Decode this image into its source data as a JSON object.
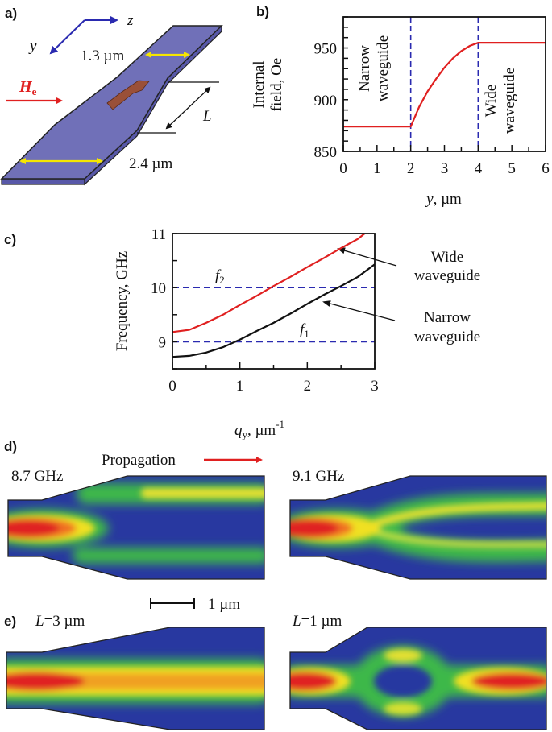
{
  "panel_labels": {
    "a": "a)",
    "b": "b)",
    "c": "c)",
    "d": "d)",
    "e": "e)"
  },
  "panel_a": {
    "axis_z": "z",
    "axis_y": "y",
    "narrow_width": "1.3 µm",
    "wide_width": "2.4 µm",
    "field_symbol": "H",
    "field_subscript": "e",
    "taper_length": "L",
    "colors": {
      "film": "#7070b8",
      "width_arrows": "#f5e600",
      "field_arrow": "#e02020",
      "magnetization_arrow": "#9a5038",
      "axes": "#2a2ab0"
    }
  },
  "chart_data": [
    {
      "type": "line",
      "xlabel_var": "y",
      "xlabel_unit": ", µm",
      "ylabel_line1": "Internal",
      "ylabel_line2": "field, Oe",
      "xlim": [
        0,
        6
      ],
      "ylim": [
        850,
        980
      ],
      "x_ticks": [
        "0",
        "1",
        "2",
        "3",
        "4",
        "5",
        "6"
      ],
      "y_ticks": [
        "850",
        "900",
        "950"
      ],
      "series": [
        {
          "color": "#e02020",
          "x": [
            0,
            2,
            2.25,
            2.5,
            2.75,
            3,
            3.25,
            3.5,
            3.75,
            4,
            6
          ],
          "y": [
            874,
            874,
            893,
            908,
            920,
            931,
            940,
            947,
            952,
            955,
            955
          ]
        }
      ],
      "vlines": [
        2,
        4
      ],
      "vline_color": "#2a2ab0",
      "region_labels": {
        "narrow_1": "Narrow",
        "narrow_2": "waveguide",
        "wide_1": "Wide",
        "wide_2": "waveguide"
      },
      "grid": false
    },
    {
      "type": "line",
      "xlabel_var": "q",
      "xlabel_sub": "y",
      "xlabel_unit": ", µm",
      "xlabel_sup": "-1",
      "ylabel": "Frequency, GHz",
      "xlim": [
        0,
        3
      ],
      "ylim": [
        8.5,
        11
      ],
      "x_ticks": [
        "0",
        "1",
        "2",
        "3"
      ],
      "y_ticks": [
        "9",
        "10",
        "11"
      ],
      "series": [
        {
          "color": "#e02020",
          "x": [
            0,
            0.25,
            0.5,
            0.75,
            1,
            1.25,
            1.5,
            1.75,
            2,
            2.25,
            2.5,
            2.75,
            2.85
          ],
          "y": [
            9.18,
            9.22,
            9.35,
            9.5,
            9.68,
            9.85,
            10.03,
            10.2,
            10.38,
            10.55,
            10.73,
            10.9,
            11.0
          ]
        },
        {
          "color": "#111111",
          "x": [
            0,
            0.25,
            0.5,
            0.75,
            1,
            1.25,
            1.5,
            1.75,
            2,
            2.25,
            2.5,
            2.75,
            3
          ],
          "y": [
            8.72,
            8.74,
            8.8,
            8.9,
            9.04,
            9.2,
            9.35,
            9.52,
            9.7,
            9.87,
            10.03,
            10.2,
            10.43
          ]
        }
      ],
      "hlines": [
        9,
        10
      ],
      "hline_color": "#2a2ab0",
      "hline_labels": {
        "f2": "f",
        "f2_sub": "2",
        "f1": "f",
        "f1_sub": "1"
      },
      "annotations": {
        "wide_1": "Wide",
        "wide_2": "waveguide",
        "narrow_1": "Narrow",
        "narrow_2": "waveguide"
      },
      "grid": false
    }
  ],
  "panel_d": {
    "propagation": "Propagation",
    "left_freq": "8.7 GHz",
    "right_freq": "9.1 GHz",
    "scale_bar": "1 µm"
  },
  "panel_e": {
    "left_L": "L",
    "left_val": "=3  µm",
    "right_L": "L",
    "right_val": "=1  µm"
  },
  "heatmap_colors": {
    "low": "#2838a0",
    "mid": "#3cb84a",
    "high": "#f0e020",
    "max": "#e02020"
  }
}
